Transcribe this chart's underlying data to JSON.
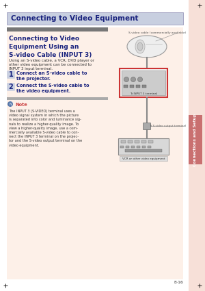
{
  "page_bg": "#ffffff",
  "right_strip_color": "#f7e0d8",
  "tab_color": "#c97070",
  "tab_text": "Connections and Setup",
  "header_bg": "#c8cfe0",
  "header_border": "#9999bb",
  "header_text": "Connecting to Video Equipment",
  "header_text_color": "#1a237e",
  "content_bg": "#fdf0e8",
  "section_bar_color": "#777777",
  "title_text": "Connecting to Video\nEquipment Using an\nS-video Cable (INPUT 3)",
  "title_color": "#1a237e",
  "subtitle_text": "Using an S-video cable, a VCR, DVD player or\nother video equipment can be connected to\nINPUT 3 input terminal.",
  "step1_num": "1",
  "step1_text": "Connect an S-video cable to\nthe projector.",
  "step2_num": "2",
  "step2_text": "Connect the S-video cable to\nthe video equipment.",
  "note_title": "Note",
  "note_text": "The INPUT 3 (S-VIDEO) terminal uses a\nvideo signal system in which the picture\nis separated into color and luminance sig-\nnals to realize a higher-quality image. To\nview a higher-quality image, use a com-\nmercially available S-video cable to con-\nnect the INPUT 3 terminal on the projec-\ntor and the S-video output terminal on the\nvideo equipment.",
  "diagram_label1": "S-video cable (commercially available)",
  "diagram_label2": "To INPUT 3 terminal",
  "diagram_label3": "To S-video output terminal",
  "diagram_label4": "VCR or other video equipment",
  "page_num": "E-16",
  "step_color": "#1a237e",
  "step_bg": "#c8cfe0",
  "note_color": "#cc4444",
  "box_border_color": "#cc3333",
  "vcr_color": "#d8d8d8",
  "projector_color": "#e8e8e8"
}
